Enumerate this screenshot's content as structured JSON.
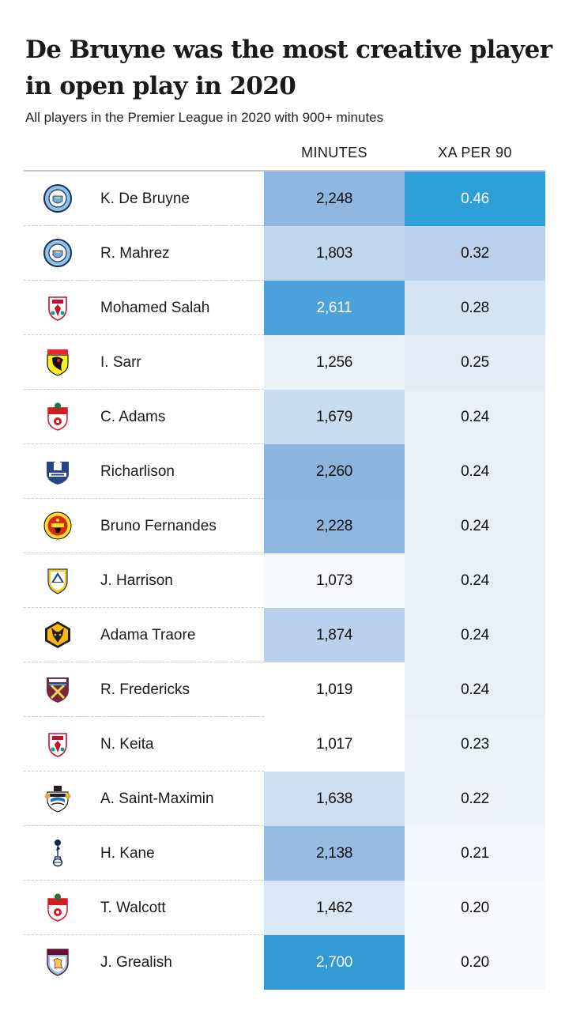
{
  "chart_data": {
    "type": "table",
    "title": "De Bruyne was the most creative player in open play in 2020",
    "subtitle": "All players in the Premier League in 2020 with 900+ minutes",
    "columns": [
      "MINUTES",
      "XA PER 90"
    ],
    "rows": [
      {
        "player": "K. De Bruyne",
        "club_crest": "manchester-city-crest-icon",
        "minutes": "2,248",
        "xa_per_90": "0.46",
        "minutes_color": "#8fb6de",
        "xa_color": "#2f9fd9",
        "minutes_text_color": "#121212",
        "xa_text_color": "#ffffff"
      },
      {
        "player": "R. Mahrez",
        "club_crest": "manchester-city-crest-icon",
        "minutes": "1,803",
        "xa_per_90": "0.32",
        "minutes_color": "#c0d6ee",
        "xa_color": "#bad2ec",
        "minutes_text_color": "#121212",
        "xa_text_color": "#121212"
      },
      {
        "player": "Mohamed Salah",
        "club_crest": "liverpool-crest-icon",
        "minutes": "2,611",
        "xa_per_90": "0.28",
        "minutes_color": "#4ba1d9",
        "xa_color": "#d5e4f3",
        "minutes_text_color": "#ffffff",
        "xa_text_color": "#121212"
      },
      {
        "player": "I. Sarr",
        "club_crest": "watford-crest-icon",
        "minutes": "1,256",
        "xa_per_90": "0.25",
        "minutes_color": "#e8f0f8",
        "xa_color": "#e2ebf6",
        "minutes_text_color": "#121212",
        "xa_text_color": "#121212"
      },
      {
        "player": "C. Adams",
        "club_crest": "southampton-crest-icon",
        "minutes": "1,679",
        "xa_per_90": "0.24",
        "minutes_color": "#c9dcf0",
        "xa_color": "#e7eff8",
        "minutes_text_color": "#121212",
        "xa_text_color": "#121212"
      },
      {
        "player": "Richarlison",
        "club_crest": "everton-crest-icon",
        "minutes": "2,260",
        "xa_per_90": "0.24",
        "minutes_color": "#8cb4dd",
        "xa_color": "#e7eff8",
        "minutes_text_color": "#121212",
        "xa_text_color": "#121212"
      },
      {
        "player": "Bruno Fernandes",
        "club_crest": "manchester-united-crest-icon",
        "minutes": "2,228",
        "xa_per_90": "0.24",
        "minutes_color": "#8fb6de",
        "xa_color": "#e7eff8",
        "minutes_text_color": "#121212",
        "xa_text_color": "#121212"
      },
      {
        "player": "J. Harrison",
        "club_crest": "leeds-united-crest-icon",
        "minutes": "1,073",
        "xa_per_90": "0.24",
        "minutes_color": "#f7f9fc",
        "xa_color": "#e7eff8",
        "minutes_text_color": "#121212",
        "xa_text_color": "#121212"
      },
      {
        "player": "Adama Traore",
        "club_crest": "wolves-crest-icon",
        "minutes": "1,874",
        "xa_per_90": "0.24",
        "minutes_color": "#b9d1ec",
        "xa_color": "#e7eff8",
        "minutes_text_color": "#121212",
        "xa_text_color": "#121212"
      },
      {
        "player": "R. Fredericks",
        "club_crest": "west-ham-crest-icon",
        "minutes": "1,019",
        "xa_per_90": "0.24",
        "minutes_color": "#ffffff",
        "xa_color": "#e7eff8",
        "minutes_text_color": "#121212",
        "xa_text_color": "#121212"
      },
      {
        "player": "N. Keita",
        "club_crest": "liverpool-crest-icon",
        "minutes": "1,017",
        "xa_per_90": "0.23",
        "minutes_color": "#ffffff",
        "xa_color": "#ebf1f9",
        "minutes_text_color": "#121212",
        "xa_text_color": "#121212"
      },
      {
        "player": "A. Saint-Maximin",
        "club_crest": "newcastle-crest-icon",
        "minutes": "1,638",
        "xa_per_90": "0.22",
        "minutes_color": "#cddff1",
        "xa_color": "#eff4fa",
        "minutes_text_color": "#121212",
        "xa_text_color": "#121212"
      },
      {
        "player": "H. Kane",
        "club_crest": "tottenham-crest-icon",
        "minutes": "2,138",
        "xa_per_90": "0.21",
        "minutes_color": "#98bce1",
        "xa_color": "#f3f7fb",
        "minutes_text_color": "#121212",
        "xa_text_color": "#121212"
      },
      {
        "player": "T. Walcott",
        "club_crest": "southampton-crest-icon",
        "minutes": "1,462",
        "xa_per_90": "0.20",
        "minutes_color": "#dae7f5",
        "xa_color": "#f7f9fc",
        "minutes_text_color": "#121212",
        "xa_text_color": "#121212"
      },
      {
        "player": "J. Grealish",
        "club_crest": "aston-villa-crest-icon",
        "minutes": "2,700",
        "xa_per_90": "0.20",
        "minutes_color": "#3298d6",
        "xa_color": "#f7f9fc",
        "minutes_text_color": "#ffffff",
        "xa_text_color": "#121212"
      }
    ]
  }
}
